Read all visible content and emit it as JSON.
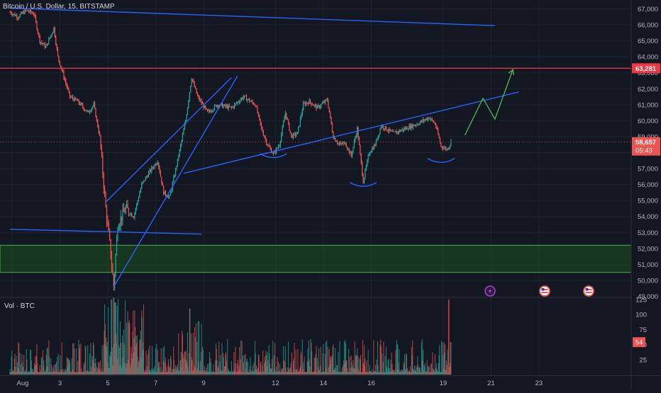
{
  "header": {
    "symbol": "Bitcoin / U.S. Dollar",
    "interval": "15",
    "exchange": "BITSTAMP"
  },
  "volume_label": "Vol · BTC",
  "colors": {
    "background": "#131722",
    "up": "#26a69a",
    "down": "#ef5350",
    "trendline": "#2962ff",
    "resistance": "#f23645",
    "projection": "#4caf50",
    "zone_fill": "#1b5e20",
    "zone_border": "#4caf50",
    "axis_text": "#b2b5be",
    "grid": "#1e222d"
  },
  "price_axis": {
    "ticks": [
      "67,000",
      "66,000",
      "65,000",
      "64,000",
      "63,000",
      "62,000",
      "61,000",
      "60,000",
      "59,000",
      "58,000",
      "57,000",
      "56,000",
      "55,000",
      "54,000",
      "53,000",
      "52,000",
      "51,000",
      "50,000",
      "49,000"
    ],
    "range": [
      49000,
      67300
    ]
  },
  "volume_axis": {
    "ticks": [
      "125",
      "100",
      "75",
      "50",
      "25"
    ],
    "range": [
      0,
      130
    ]
  },
  "time_axis": {
    "labels": [
      "Aug",
      "3",
      "5",
      "7",
      "9",
      "12",
      "14",
      "16",
      "19",
      "21",
      "23"
    ]
  },
  "markers": {
    "resistance_price": "63,281",
    "last_price": "58,657",
    "countdown": "05:43",
    "last_volume": "54"
  },
  "event_icons": [
    "lightning-icon",
    "us-flag-icon",
    "us-flag-icon"
  ],
  "chart_data": {
    "type": "candlestick",
    "title": "Bitcoin / U.S. Dollar, 15, BITSTAMP",
    "xlabel": "",
    "ylabel": "",
    "ylim": [
      49000,
      67300
    ],
    "x_range": [
      "Aug 1",
      "Aug 23"
    ],
    "grid": true,
    "price_path": [
      [
        "Aug 1 00:00",
        66800
      ],
      [
        "Aug 1 08:00",
        66500
      ],
      [
        "Aug 1 16:00",
        66900
      ],
      [
        "Aug 2 00:00",
        66700
      ],
      [
        "Aug 2 06:00",
        65000
      ],
      [
        "Aug 2 12:00",
        64600
      ],
      [
        "Aug 2 20:00",
        65800
      ],
      [
        "Aug 3 00:00",
        64000
      ],
      [
        "Aug 3 12:00",
        61500
      ],
      [
        "Aug 3 20:00",
        61200
      ],
      [
        "Aug 4 06:00",
        60500
      ],
      [
        "Aug 4 12:00",
        61000
      ],
      [
        "Aug 4 18:00",
        59000
      ],
      [
        "Aug 5 00:00",
        54500
      ],
      [
        "Aug 5 04:00",
        52300
      ],
      [
        "Aug 5 08:00",
        49600
      ],
      [
        "Aug 5 12:00",
        53500
      ],
      [
        "Aug 5 20:00",
        54500
      ],
      [
        "Aug 6 04:00",
        54000
      ],
      [
        "Aug 6 12:00",
        56000
      ],
      [
        "Aug 6 20:00",
        56800
      ],
      [
        "Aug 7 04:00",
        57500
      ],
      [
        "Aug 7 10:00",
        55500
      ],
      [
        "Aug 7 16:00",
        55200
      ],
      [
        "Aug 8 00:00",
        57500
      ],
      [
        "Aug 8 08:00",
        60000
      ],
      [
        "Aug 8 14:00",
        62700
      ],
      [
        "Aug 8 20:00",
        61500
      ],
      [
        "Aug 9 06:00",
        60500
      ],
      [
        "Aug 9 16:00",
        61000
      ],
      [
        "Aug 10 06:00",
        60800
      ],
      [
        "Aug 10 18:00",
        61500
      ],
      [
        "Aug 11 06:00",
        61000
      ],
      [
        "Aug 11 12:00",
        59500
      ],
      [
        "Aug 11 18:00",
        58500
      ],
      [
        "Aug 12 00:00",
        57900
      ],
      [
        "Aug 12 06:00",
        58500
      ],
      [
        "Aug 12 12:00",
        60500
      ],
      [
        "Aug 12 18:00",
        59000
      ],
      [
        "Aug 13 00:00",
        59200
      ],
      [
        "Aug 13 06:00",
        61000
      ],
      [
        "Aug 13 12:00",
        61200
      ],
      [
        "Aug 13 20:00",
        60800
      ],
      [
        "Aug 14 06:00",
        61300
      ],
      [
        "Aug 14 12:00",
        59000
      ],
      [
        "Aug 14 18:00",
        58500
      ],
      [
        "Aug 15 00:00",
        58600
      ],
      [
        "Aug 15 06:00",
        57800
      ],
      [
        "Aug 15 12:00",
        59500
      ],
      [
        "Aug 15 18:00",
        56200
      ],
      [
        "Aug 16 00:00",
        58000
      ],
      [
        "Aug 16 06:00",
        58500
      ],
      [
        "Aug 16 12:00",
        59700
      ],
      [
        "Aug 17 00:00",
        59200
      ],
      [
        "Aug 17 12:00",
        59500
      ],
      [
        "Aug 18 00:00",
        59800
      ],
      [
        "Aug 18 12:00",
        60200
      ],
      [
        "Aug 18 18:00",
        59800
      ],
      [
        "Aug 19 00:00",
        58400
      ],
      [
        "Aug 19 06:00",
        58200
      ],
      [
        "Aug 19 10:00",
        58657
      ]
    ],
    "drawings": [
      {
        "kind": "trendline",
        "from": [
          "Aug 1 00:00",
          67050
        ],
        "to": [
          "Aug 21 06:00",
          65950
        ]
      },
      {
        "kind": "trendline",
        "from": [
          "Aug 1 00:00",
          53200
        ],
        "to": [
          "Aug 9 00:00",
          52900
        ]
      },
      {
        "kind": "trendline",
        "from": [
          "Aug 5 00:00",
          54900
        ],
        "to": [
          "Aug 10 06:00",
          62700
        ]
      },
      {
        "kind": "trendline",
        "from": [
          "Aug 5 08:00",
          49600
        ],
        "to": [
          "Aug 10 12:00",
          62800
        ]
      },
      {
        "kind": "trendline",
        "from": [
          "Aug 8 06:00",
          56700
        ],
        "to": [
          "Aug 22 06:00",
          61800
        ]
      },
      {
        "kind": "horizontal",
        "price": 63281
      },
      {
        "kind": "zone",
        "from": 50500,
        "to": 52200
      },
      {
        "kind": "projection",
        "points": [
          [
            "Aug 20 00:00",
            59100
          ],
          [
            "Aug 20 18:00",
            61400
          ],
          [
            "Aug 21 06:00",
            60100
          ],
          [
            "Aug 22 00:00",
            63200
          ]
        ]
      },
      {
        "kind": "arc",
        "center": [
          "Aug 12 00:00",
          57800
        ]
      },
      {
        "kind": "arc",
        "center": [
          "Aug 15 18:00",
          56000
        ]
      },
      {
        "kind": "arc",
        "center": [
          "Aug 19 00:00",
          57500
        ]
      }
    ],
    "volume": {
      "series": "Vol · BTC",
      "notable": [
        [
          "Aug 5 06:00",
          125
        ],
        [
          "Aug 5 10:00",
          120
        ],
        [
          "Aug 8 12:00",
          110
        ],
        [
          "Aug 19 08:00",
          125
        ],
        [
          "Aug 19 10:00",
          54
        ]
      ]
    }
  }
}
